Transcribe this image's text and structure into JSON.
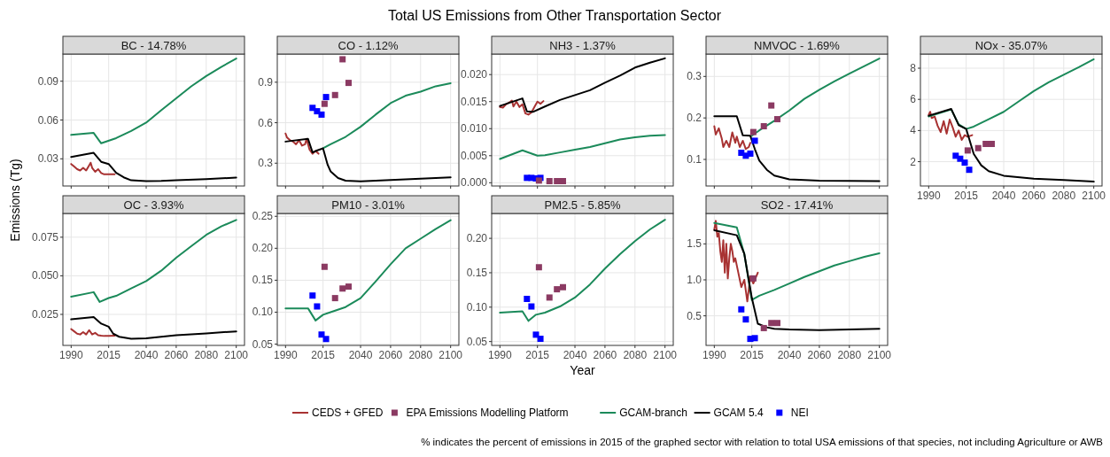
{
  "chart_data": [
    {
      "type": "line",
      "title": "BC - 14.78%",
      "ylabel": "Emissions (Tg)",
      "legend": "bottom",
      "annotations": [
        "Total US Emissions from Other Transportation Sector",
        "% indicates the percent of emissions in 2015 of the graphed sector with relation to total USA emissions of that species, not including Agriculture or AWB"
      ],
      "grid": true,
      "tick_labels": "y",
      "xlim": [
        1984.5,
        2105.5
      ],
      "xticks": [
        1990,
        2015,
        2040,
        2060,
        2080,
        2100
      ],
      "ylim": [
        0.009,
        0.111
      ],
      "yticks": [
        0.03,
        0.06,
        0.09
      ],
      "series": [
        {
          "name": "CEDS + GFED",
          "type": "line",
          "color": "#a83232",
          "x": [
            1990,
            1992,
            1994,
            1996,
            1998,
            2000,
            2002,
            2003,
            2004,
            2006,
            2008,
            2010,
            2012,
            2014,
            2016,
            2019
          ],
          "values": [
            0.026,
            0.024,
            0.022,
            0.021,
            0.023,
            0.021,
            0.025,
            0.027,
            0.023,
            0.02,
            0.022,
            0.019,
            0.018,
            0.018,
            0.018,
            0.018
          ]
        },
        {
          "name": "GCAM-branch",
          "type": "line",
          "color": "#1b8a5a",
          "x": [
            1990,
            2005,
            2010,
            2020,
            2030,
            2040,
            2050,
            2060,
            2070,
            2080,
            2090,
            2100
          ],
          "values": [
            0.0485,
            0.05,
            0.042,
            0.046,
            0.0515,
            0.058,
            0.0676,
            0.0768,
            0.086,
            0.094,
            0.101,
            0.1075
          ]
        },
        {
          "name": "GCAM 5.4",
          "type": "line",
          "color": "#000000",
          "x": [
            1990,
            2005,
            2010,
            2015,
            2020,
            2025,
            2030,
            2040,
            2050,
            2060,
            2080,
            2100
          ],
          "values": [
            0.0314,
            0.0346,
            0.0277,
            0.026,
            0.0192,
            0.0157,
            0.0134,
            0.0127,
            0.0129,
            0.0134,
            0.0143,
            0.0155
          ]
        }
      ]
    },
    {
      "type": "line",
      "title": "CO - 1.12%",
      "legend": "bottom",
      "grid": true,
      "tick_labels": "y",
      "xlim": [
        1984.5,
        2105.5
      ],
      "xticks": [
        1990,
        2015,
        2040,
        2060,
        2080,
        2100
      ],
      "ylim": [
        0.131,
        1.109
      ],
      "yticks": [
        0.3,
        0.6,
        0.9
      ],
      "series": [
        {
          "name": "CEDS + GFED",
          "type": "line",
          "color": "#a83232",
          "x": [
            1990,
            1991,
            1993,
            1995,
            1997,
            1999,
            2001,
            2003,
            2004,
            2006,
            2008,
            2010,
            2012
          ],
          "values": [
            0.52,
            0.49,
            0.47,
            0.46,
            0.44,
            0.47,
            0.43,
            0.44,
            0.48,
            0.4,
            0.37,
            0.39,
            0.37
          ]
        },
        {
          "name": "EPA Emissions Modelling Platform",
          "type": "scatter",
          "marker": "square",
          "color": "#8b3a62",
          "x": [
            2016,
            2023,
            2028,
            2032
          ],
          "values": [
            0.74,
            0.805,
            1.07,
            0.895
          ]
        },
        {
          "name": "GCAM-branch",
          "type": "line",
          "color": "#1b8a5a",
          "x": [
            2015,
            2020,
            2030,
            2040,
            2050,
            2060,
            2070,
            2080,
            2090,
            2100
          ],
          "values": [
            0.41,
            0.44,
            0.495,
            0.57,
            0.66,
            0.745,
            0.8,
            0.83,
            0.87,
            0.893
          ]
        },
        {
          "name": "GCAM 5.4",
          "type": "line",
          "color": "#000000",
          "x": [
            1990,
            2005,
            2008,
            2010,
            2015,
            2018,
            2020,
            2025,
            2030,
            2040,
            2060,
            2080,
            2100
          ],
          "values": [
            0.46,
            0.48,
            0.38,
            0.39,
            0.41,
            0.29,
            0.24,
            0.19,
            0.17,
            0.165,
            0.175,
            0.185,
            0.195
          ]
        },
        {
          "name": "NEI",
          "type": "scatter",
          "marker": "square",
          "color": "#0000ff",
          "x": [
            2008,
            2011,
            2014,
            2017
          ],
          "values": [
            0.71,
            0.685,
            0.66,
            0.79
          ]
        }
      ]
    },
    {
      "type": "line",
      "title": "NH3 - 1.37%",
      "legend": "bottom",
      "grid": true,
      "tick_labels": "y",
      "xlim": [
        1984.5,
        2105.5
      ],
      "xticks": [
        1990,
        2015,
        2040,
        2060,
        2080,
        2100
      ],
      "ylim": [
        -0.0006,
        0.0238
      ],
      "yticks": [
        {
          "value": 0,
          "label": "0.000"
        },
        {
          "value": 0.005,
          "label": "0.005"
        },
        {
          "value": 0.01,
          "label": "0.010"
        },
        {
          "value": 0.015,
          "label": "0.015"
        },
        {
          "value": 0.02,
          "label": "0.020"
        }
      ],
      "series": [
        {
          "name": "CEDS + GFED",
          "type": "line",
          "color": "#a83232",
          "x": [
            1990,
            1992,
            1994,
            1996,
            1998,
            1999,
            2001,
            2003,
            2005,
            2007,
            2009,
            2011,
            2013,
            2015,
            2017,
            2019
          ],
          "values": [
            0.014,
            0.0139,
            0.0145,
            0.0148,
            0.0152,
            0.0141,
            0.015,
            0.014,
            0.0145,
            0.0128,
            0.0126,
            0.013,
            0.014,
            0.015,
            0.0146,
            0.0151
          ]
        },
        {
          "name": "EPA Emissions Modelling Platform",
          "type": "scatter",
          "marker": "square",
          "color": "#8b3a62",
          "x": [
            2016,
            2023,
            2028,
            2032
          ],
          "values": [
            0.0004,
            0.0003,
            0.0003,
            0.0003
          ]
        },
        {
          "name": "GCAM-branch",
          "type": "line",
          "color": "#1b8a5a",
          "x": [
            1990,
            2005,
            2015,
            2020,
            2030,
            2040,
            2050,
            2060,
            2070,
            2080,
            2090,
            2100
          ],
          "values": [
            0.0044,
            0.006,
            0.005,
            0.0051,
            0.0056,
            0.0061,
            0.0066,
            0.0073,
            0.008,
            0.0084,
            0.0087,
            0.0088
          ]
        },
        {
          "name": "GCAM 5.4",
          "type": "line",
          "color": "#000000",
          "x": [
            1990,
            2005,
            2008,
            2012,
            2020,
            2030,
            2040,
            2050,
            2060,
            2070,
            2080,
            2090,
            2100
          ],
          "values": [
            0.0142,
            0.0156,
            0.0132,
            0.0131,
            0.0141,
            0.0153,
            0.0162,
            0.0171,
            0.0185,
            0.0198,
            0.0213,
            0.0222,
            0.023
          ]
        },
        {
          "name": "NEI",
          "type": "scatter",
          "marker": "square",
          "color": "#0000ff",
          "x": [
            2008,
            2011,
            2014,
            2017
          ],
          "values": [
            0.0009,
            0.0009,
            0.0008,
            0.0009
          ]
        }
      ]
    },
    {
      "type": "line",
      "title": "NMVOC - 1.69%",
      "legend": "bottom",
      "grid": true,
      "tick_labels": "y",
      "xlim": [
        1984.5,
        2105.5
      ],
      "xticks": [
        1990,
        2015,
        2040,
        2060,
        2080,
        2100
      ],
      "ylim": [
        0.036,
        0.354
      ],
      "yticks": [
        0.1,
        0.2,
        0.3
      ],
      "series": [
        {
          "name": "CEDS + GFED",
          "type": "line",
          "color": "#a83232",
          "x": [
            1990,
            1991,
            1993,
            1995,
            1996,
            1998,
            2000,
            2002,
            2004,
            2005,
            2007,
            2009,
            2011,
            2013,
            2014
          ],
          "values": [
            0.18,
            0.16,
            0.175,
            0.15,
            0.13,
            0.145,
            0.13,
            0.165,
            0.14,
            0.155,
            0.13,
            0.145,
            0.125,
            0.13,
            0.14
          ]
        },
        {
          "name": "EPA Emissions Modelling Platform",
          "type": "scatter",
          "marker": "square",
          "color": "#8b3a62",
          "x": [
            2016,
            2023,
            2028,
            2032
          ],
          "values": [
            0.166,
            0.18,
            0.23,
            0.197
          ]
        },
        {
          "name": "GCAM-branch",
          "type": "line",
          "color": "#1b8a5a",
          "x": [
            2015,
            2020,
            2030,
            2040,
            2050,
            2060,
            2070,
            2080,
            2090,
            2100
          ],
          "values": [
            0.157,
            0.17,
            0.193,
            0.218,
            0.246,
            0.268,
            0.288,
            0.307,
            0.325,
            0.343
          ]
        },
        {
          "name": "GCAM 5.4",
          "type": "line",
          "color": "#000000",
          "x": [
            1990,
            2005,
            2009,
            2014,
            2017,
            2020,
            2025,
            2030,
            2040,
            2060,
            2100
          ],
          "values": [
            0.204,
            0.204,
            0.158,
            0.157,
            0.125,
            0.097,
            0.075,
            0.061,
            0.052,
            0.049,
            0.048
          ]
        },
        {
          "name": "NEI",
          "type": "scatter",
          "marker": "square",
          "color": "#0000ff",
          "x": [
            2008,
            2011,
            2014,
            2017
          ],
          "values": [
            0.116,
            0.109,
            0.114,
            0.145
          ]
        }
      ]
    },
    {
      "type": "line",
      "title": "NOx - 35.07%",
      "legend": "bottom",
      "grid": true,
      "xlim": [
        1984.5,
        2105.5
      ],
      "xticks": [
        1990,
        2015,
        2040,
        2060,
        2080,
        2100
      ],
      "ylim": [
        0.44,
        8.91
      ],
      "yticks": [
        2,
        4,
        6,
        8
      ],
      "series": [
        {
          "name": "CEDS + GFED",
          "type": "line",
          "color": "#a83232",
          "x": [
            1990,
            1991,
            1992,
            1994,
            1996,
            1998,
            2000,
            2002,
            2004,
            2006,
            2008,
            2010,
            2012,
            2014,
            2016,
            2019
          ],
          "values": [
            5.0,
            5.2,
            4.8,
            4.9,
            4.3,
            3.9,
            4.6,
            3.8,
            4.7,
            4.2,
            3.6,
            4.0,
            3.4,
            3.7,
            3.6,
            3.7
          ]
        },
        {
          "name": "EPA Emissions Modelling Platform",
          "type": "scatter",
          "marker": "square",
          "color": "#8b3a62",
          "x": [
            2016,
            2023,
            2028,
            2032
          ],
          "values": [
            2.72,
            2.87,
            3.14,
            3.14
          ]
        },
        {
          "name": "GCAM-branch",
          "type": "line",
          "color": "#1b8a5a",
          "x": [
            1990,
            2005,
            2010,
            2015,
            2020,
            2030,
            2040,
            2050,
            2060,
            2070,
            2080,
            2090,
            2100
          ],
          "values": [
            4.9,
            5.35,
            4.4,
            4.1,
            4.25,
            4.72,
            5.2,
            5.87,
            6.53,
            7.1,
            7.58,
            8.06,
            8.57
          ]
        },
        {
          "name": "GCAM 5.4",
          "type": "line",
          "color": "#000000",
          "x": [
            1990,
            2005,
            2010,
            2015,
            2020,
            2025,
            2030,
            2040,
            2060,
            2080,
            2100
          ],
          "values": [
            4.95,
            5.39,
            4.34,
            4.1,
            2.5,
            1.77,
            1.39,
            1.1,
            0.91,
            0.82,
            0.72
          ]
        },
        {
          "name": "NEI",
          "type": "scatter",
          "marker": "square",
          "color": "#0000ff",
          "x": [
            2008,
            2011,
            2014,
            2017
          ],
          "values": [
            2.38,
            2.19,
            1.94,
            1.48
          ]
        }
      ]
    },
    {
      "type": "line",
      "title": "OC - 3.93%",
      "legend": "bottom",
      "grid": true,
      "xlim": [
        1984.5,
        2105.5
      ],
      "xticks": [
        1990,
        2015,
        2040,
        2060,
        2080,
        2100
      ],
      "ylim": [
        0.0049,
        0.0904
      ],
      "yticks": [
        0.025,
        {
          "value": 0.05,
          "label": "0.050"
        },
        0.075
      ],
      "series": [
        {
          "name": "CEDS + GFED",
          "type": "line",
          "color": "#a83232",
          "x": [
            1990,
            1992,
            1994,
            1996,
            1998,
            2000,
            2002,
            2004,
            2006,
            2008,
            2010,
            2012,
            2015,
            2019
          ],
          "values": [
            0.0155,
            0.014,
            0.0125,
            0.012,
            0.0135,
            0.012,
            0.0148,
            0.012,
            0.013,
            0.0115,
            0.0112,
            0.011,
            0.011,
            0.0112
          ]
        },
        {
          "name": "GCAM-branch",
          "type": "line",
          "color": "#1b8a5a",
          "x": [
            1990,
            2005,
            2009,
            2015,
            2020,
            2030,
            2040,
            2050,
            2060,
            2070,
            2080,
            2090,
            2100
          ],
          "values": [
            0.0365,
            0.0394,
            0.0331,
            0.0356,
            0.037,
            0.0418,
            0.0466,
            0.0533,
            0.0617,
            0.0692,
            0.0765,
            0.082,
            0.0862
          ]
        },
        {
          "name": "GCAM 5.4",
          "type": "line",
          "color": "#000000",
          "x": [
            1990,
            2005,
            2010,
            2015,
            2018,
            2022,
            2030,
            2040,
            2060,
            2080,
            2100
          ],
          "values": [
            0.0218,
            0.0233,
            0.019,
            0.017,
            0.0125,
            0.0105,
            0.0092,
            0.0095,
            0.0115,
            0.0127,
            0.014
          ]
        }
      ]
    },
    {
      "type": "line",
      "title": "PM10 - 3.01%",
      "legend": "bottom",
      "grid": true,
      "xlim": [
        1984.5,
        2105.5
      ],
      "xticks": [
        1990,
        2015,
        2040,
        2060,
        2080,
        2100
      ],
      "ylim": [
        0.048,
        0.2545
      ],
      "yticks": [
        0.05,
        {
          "value": 0.1,
          "label": "0.10"
        },
        0.15,
        {
          "value": 0.2,
          "label": "0.20"
        },
        0.25
      ],
      "series": [
        {
          "name": "EPA Emissions Modelling Platform",
          "type": "scatter",
          "marker": "square",
          "color": "#8b3a62",
          "x": [
            2016,
            2023,
            2028,
            2032
          ],
          "values": [
            0.171,
            0.122,
            0.137,
            0.14
          ]
        },
        {
          "name": "GCAM-branch",
          "type": "line",
          "color": "#1b8a5a",
          "x": [
            1990,
            2005,
            2010,
            2015,
            2020,
            2030,
            2040,
            2050,
            2060,
            2070,
            2080,
            2090,
            2100
          ],
          "values": [
            0.106,
            0.106,
            0.087,
            0.096,
            0.1,
            0.108,
            0.122,
            0.148,
            0.175,
            0.2,
            0.215,
            0.23,
            0.244
          ]
        },
        {
          "name": "NEI",
          "type": "scatter",
          "marker": "square",
          "color": "#0000ff",
          "x": [
            2008,
            2011,
            2014,
            2017
          ],
          "values": [
            0.126,
            0.109,
            0.065,
            0.058
          ]
        }
      ]
    },
    {
      "type": "line",
      "title": "PM2.5 - 5.85%",
      "xlabel": "Year",
      "legend": "bottom",
      "grid": true,
      "xlim": [
        1984.5,
        2105.5
      ],
      "xticks": [
        1990,
        2015,
        2040,
        2060,
        2080,
        2100
      ],
      "ylim": [
        0.0444,
        0.2362
      ],
      "yticks": [
        0.05,
        {
          "value": 0.1,
          "label": "0.10"
        },
        0.15,
        {
          "value": 0.2,
          "label": "0.20"
        }
      ],
      "series": [
        {
          "name": "EPA Emissions Modelling Platform",
          "type": "scatter",
          "marker": "square",
          "color": "#8b3a62",
          "x": [
            2016,
            2023,
            2028,
            2032
          ],
          "values": [
            0.158,
            0.114,
            0.126,
            0.129
          ]
        },
        {
          "name": "GCAM-branch",
          "type": "line",
          "color": "#1b8a5a",
          "x": [
            1990,
            2005,
            2009,
            2014,
            2020,
            2030,
            2040,
            2050,
            2060,
            2070,
            2080,
            2090,
            2100
          ],
          "values": [
            0.092,
            0.094,
            0.08,
            0.089,
            0.092,
            0.101,
            0.114,
            0.133,
            0.156,
            0.177,
            0.196,
            0.213,
            0.227
          ]
        },
        {
          "name": "NEI",
          "type": "scatter",
          "marker": "square",
          "color": "#0000ff",
          "x": [
            2008,
            2011,
            2014,
            2017
          ],
          "values": [
            0.112,
            0.101,
            0.06,
            0.054
          ]
        }
      ]
    },
    {
      "type": "line",
      "title": "SO2 - 17.41%",
      "legend": "bottom",
      "grid": true,
      "xlim": [
        1984.5,
        2105.5
      ],
      "xticks": [
        1990,
        2015,
        2040,
        2060,
        2080,
        2100
      ],
      "ylim": [
        0.089,
        1.923
      ],
      "yticks": [
        0.5,
        {
          "value": 1,
          "label": "1.0"
        },
        1.5
      ],
      "series": [
        {
          "name": "CEDS + GFED",
          "type": "line",
          "color": "#a83232",
          "x": [
            1990,
            1991,
            1992,
            1993,
            1994,
            1995,
            1996,
            1997,
            1998,
            1999,
            2000,
            2001,
            2002,
            2003,
            2004,
            2006,
            2008,
            2010,
            2012,
            2014,
            2016,
            2019
          ],
          "values": [
            1.7,
            1.82,
            1.6,
            1.65,
            1.4,
            1.25,
            1.55,
            1.1,
            1.5,
            1.02,
            1.3,
            1.5,
            1.4,
            1.25,
            1.3,
            1.1,
            0.9,
            1.0,
            0.7,
            1.05,
            0.95,
            1.1
          ]
        },
        {
          "name": "EPA Emissions Modelling Platform",
          "type": "scatter",
          "marker": "square",
          "color": "#8b3a62",
          "x": [
            2016,
            2023,
            2028,
            2032
          ],
          "values": [
            1.02,
            0.33,
            0.4,
            0.4
          ]
        },
        {
          "name": "GCAM-branch",
          "type": "line",
          "color": "#1b8a5a",
          "x": [
            1990,
            2005,
            2010,
            2015,
            2020,
            2030,
            2040,
            2050,
            2060,
            2070,
            2080,
            2090,
            2100
          ],
          "values": [
            1.79,
            1.73,
            1.36,
            0.72,
            0.78,
            0.86,
            0.95,
            1.04,
            1.12,
            1.2,
            1.26,
            1.32,
            1.37
          ]
        },
        {
          "name": "GCAM 5.4",
          "type": "line",
          "color": "#000000",
          "x": [
            1990,
            2005,
            2010,
            2015,
            2019,
            2025,
            2030,
            2040,
            2060,
            2080,
            2100
          ],
          "values": [
            1.69,
            1.62,
            1.36,
            0.75,
            0.39,
            0.34,
            0.32,
            0.31,
            0.3,
            0.31,
            0.32
          ]
        },
        {
          "name": "NEI",
          "type": "scatter",
          "marker": "square",
          "color": "#0000ff",
          "x": [
            2008,
            2011,
            2014,
            2017
          ],
          "values": [
            0.59,
            0.45,
            0.18,
            0.19
          ]
        }
      ]
    }
  ]
}
